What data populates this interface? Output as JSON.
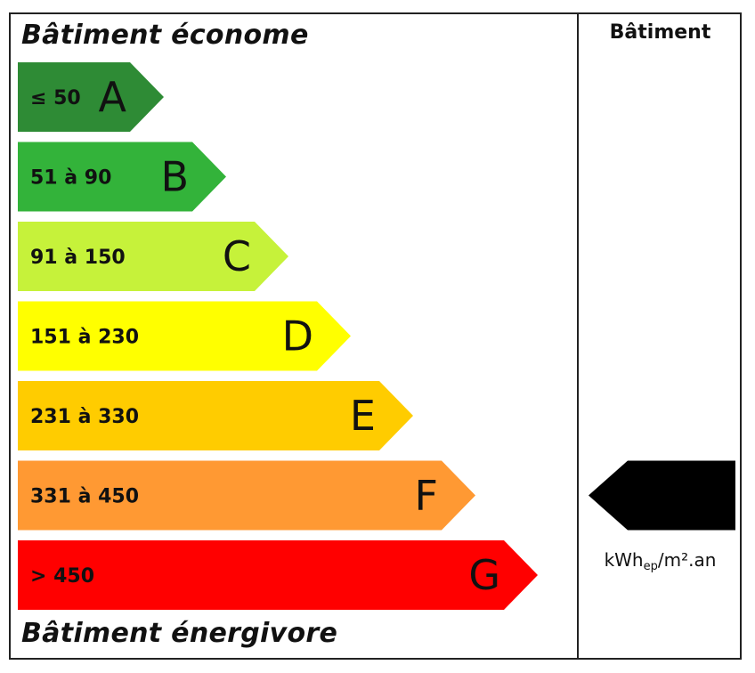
{
  "chart_data": {
    "type": "bar",
    "title_top": "Bâtiment économe",
    "title_bottom": "Bâtiment énergivore",
    "column_header": "Bâtiment",
    "unit": {
      "main": "kWh",
      "sub": "ep",
      "tail": "/m².an"
    },
    "classes": [
      {
        "letter": "A",
        "range": "≤ 50",
        "color": "#2e8b35"
      },
      {
        "letter": "B",
        "range": "51 à 90",
        "color": "#33b33a"
      },
      {
        "letter": "C",
        "range": "91 à 150",
        "color": "#c6f23a"
      },
      {
        "letter": "D",
        "range": "151 à 230",
        "color": "#ffff00"
      },
      {
        "letter": "E",
        "range": "231 à 330",
        "color": "#ffcc00"
      },
      {
        "letter": "F",
        "range": "331 à 450",
        "color": "#ff9933"
      },
      {
        "letter": "G",
        "range": "> 450",
        "color": "#ff0000"
      }
    ],
    "indicator": {
      "class": "F",
      "color": "#000000"
    }
  }
}
